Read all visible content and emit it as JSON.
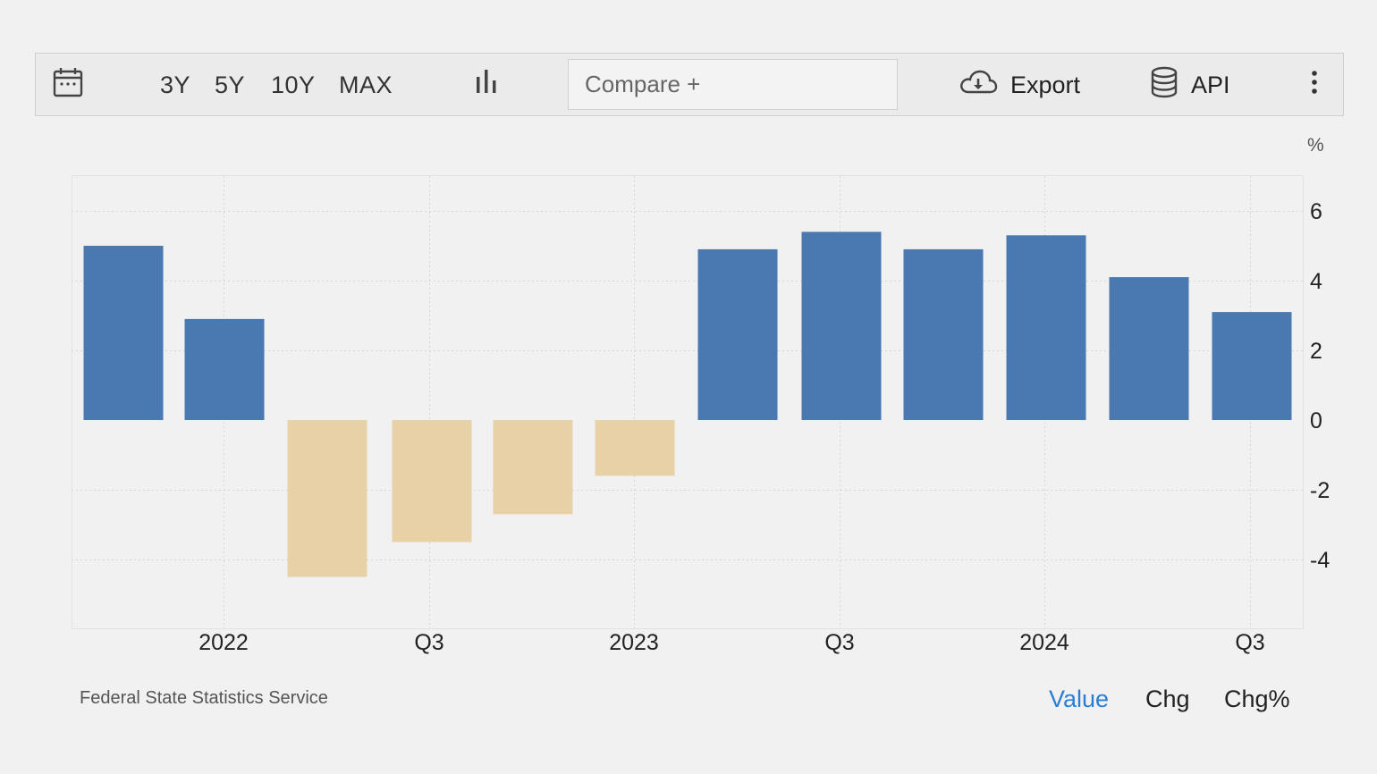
{
  "toolbar": {
    "ranges": [
      "3Y",
      "5Y",
      "10Y",
      "MAX"
    ],
    "compare_label": "Compare +",
    "export_label": "Export",
    "api_label": "API",
    "icons": [
      "calendar-icon",
      "bar-chart-icon",
      "cloud-download-icon",
      "database-icon",
      "more-vertical-icon"
    ]
  },
  "source": "Federal State Statistics Service",
  "modes": [
    "Value",
    "Chg",
    "Chg%"
  ],
  "active_mode": "Value",
  "colors": {
    "positive": "#4a78b1",
    "negative": "#e8d1a6",
    "active_mode": "#2a7fd4"
  },
  "chart_data": {
    "type": "bar",
    "unit_label": "%",
    "values": [
      5.0,
      2.9,
      -4.5,
      -3.5,
      -2.7,
      -1.6,
      4.9,
      5.4,
      4.9,
      5.3,
      4.1,
      3.1
    ],
    "x_tick_labels": [
      "2022",
      "Q3",
      "2023",
      "Q3",
      "2024",
      "Q3"
    ],
    "y_ticks": [
      6,
      4,
      2,
      0,
      -2,
      -4
    ],
    "y_tick_labels": [
      "6",
      "4",
      "2",
      "0",
      "-2",
      "-4"
    ],
    "ylim": [
      -6,
      7
    ],
    "grid": true,
    "y_axis_position": "right"
  }
}
